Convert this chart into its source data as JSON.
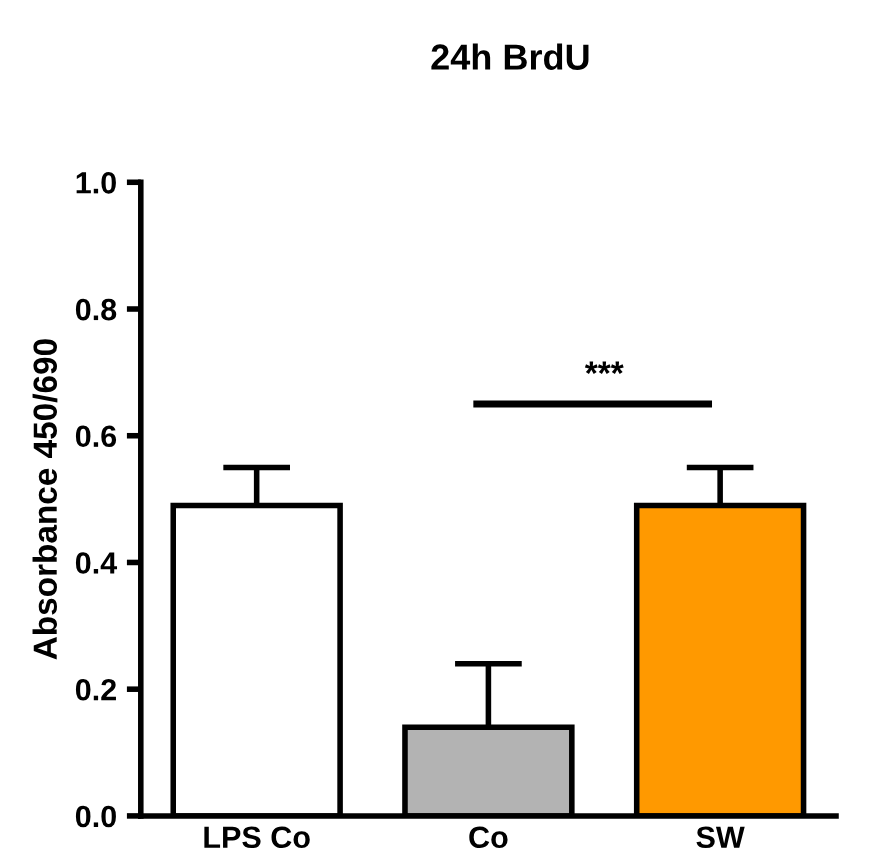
{
  "chart_data": {
    "type": "bar",
    "title": "24h BrdU",
    "ylabel": "Absorbance 450/690",
    "categories": [
      "LPS Co",
      "Co",
      "SW"
    ],
    "values": [
      0.49,
      0.14,
      0.49
    ],
    "errors": [
      0.06,
      0.1,
      0.06
    ],
    "colors": [
      "#ffffff",
      "#b3b3b3",
      "#ff9900"
    ],
    "ylim": [
      0,
      1.0
    ],
    "yticks": [
      {
        "value": 0,
        "label": "0.0"
      },
      {
        "value": 0.2,
        "label": "0.2"
      },
      {
        "value": 0.4,
        "label": "0.4"
      },
      {
        "value": 0.6,
        "label": "0.6"
      },
      {
        "value": 0.8,
        "label": "0.8"
      },
      {
        "value": 1.0,
        "label": "1.0"
      }
    ],
    "annotations": [
      "***"
    ],
    "grid": false
  }
}
